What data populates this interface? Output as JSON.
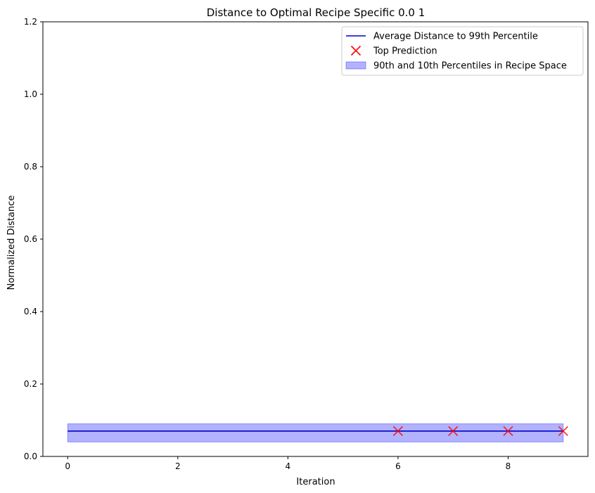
{
  "chart_data": {
    "type": "line",
    "title": "Distance to Optimal Recipe Specific 0.0 1",
    "xlabel": "Iteration",
    "ylabel": "Normalized Distance",
    "xlim": [
      -0.45,
      9.45
    ],
    "ylim": [
      0.0,
      1.2
    ],
    "xticks": [
      0,
      2,
      4,
      6,
      8
    ],
    "xtick_labels": [
      "0",
      "2",
      "4",
      "6",
      "8"
    ],
    "yticks": [
      0.0,
      0.2,
      0.4,
      0.6,
      0.8,
      1.0,
      1.2
    ],
    "ytick_labels": [
      "0.0",
      "0.2",
      "0.4",
      "0.6",
      "0.8",
      "1.0",
      "1.2"
    ],
    "grid": false,
    "legend_position": "top-right",
    "series": [
      {
        "name": "Average Distance to 99th Percentile",
        "kind": "line",
        "color": "#0000cc",
        "x": [
          0,
          1,
          2,
          3,
          4,
          5,
          6,
          7,
          8,
          9
        ],
        "y": [
          0.07,
          0.07,
          0.07,
          0.07,
          0.07,
          0.07,
          0.07,
          0.07,
          0.07,
          0.07
        ]
      },
      {
        "name": "Top Prediction",
        "kind": "scatter",
        "marker": "x",
        "color": "#ff0000",
        "x": [
          6,
          7,
          8,
          9
        ],
        "y": [
          0.07,
          0.07,
          0.07,
          0.07
        ]
      },
      {
        "name": "90th and 10th Percentiles in Recipe Space",
        "kind": "band",
        "color": "#0000ff",
        "x": [
          0,
          9
        ],
        "lower": [
          0.04,
          0.04
        ],
        "upper": [
          0.09,
          0.09
        ]
      }
    ]
  }
}
